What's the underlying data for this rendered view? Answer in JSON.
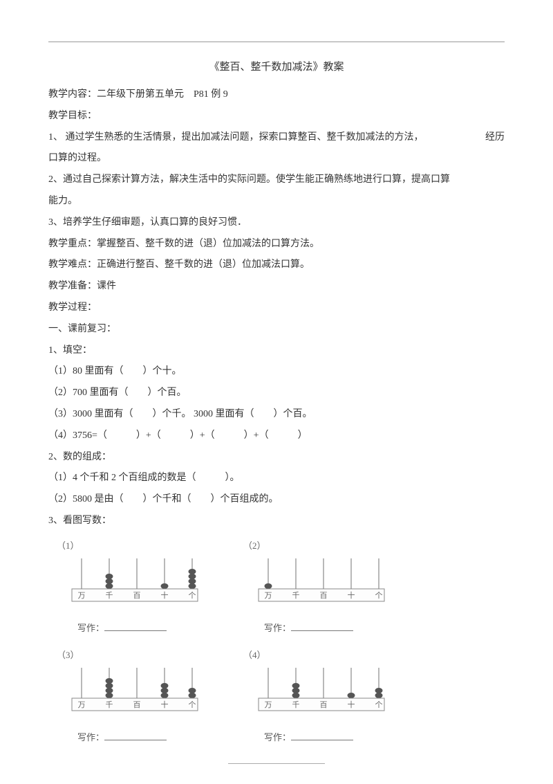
{
  "title": "《整百、整千数加减法》教案",
  "lines": {
    "l1": "教学内容：二年级下册第五单元　P81 例 9",
    "l2": "教学目标：",
    "l3a": "1、 通过学生熟悉的生活情景，提出加减法问题，探索口算整百、整千数加减法的方法，",
    "l3b": "经历",
    "l4": "口算的过程。",
    "l5": "2、通过自己探索计算方法，解决生活中的实际问题。使学生能正确熟练地进行口算，提高口算",
    "l6": "能力。",
    "l7": "3、培养学生仔细审题，认真口算的良好习惯．",
    "l8": "教学重点：掌握整百、整千数的进（退）位加减法的口算方法。",
    "l9": "教学难点：正确进行整百、整千数的进（退）位加减法口算。",
    "l10": "教学准备：课件",
    "l11": "教学过程：",
    "l12": "一、课前复习：",
    "l13": "1、填空：",
    "l14": "（1）80 里面有（　　）个十。",
    "l15": "（2）700 里面有（　　）个百。",
    "l16": "（3）3000 里面有（　　）个千。 3000 里面有（　　）个百。",
    "l17": "（4）3756=（　　　）+（　　　）+（　　　）+（　　　）",
    "l18": "2、数的组成：",
    "l19": "（1）4 个千和 2 个百组成的数是（　　　）。",
    "l20": "（2）5800 是由（　　）个千和（　　）个百组成的。",
    "l21": "3、看图写数：",
    "write": "写作："
  },
  "abacus": {
    "labels": [
      "万",
      "千",
      "百",
      "十",
      "个"
    ],
    "bead_color": "#555555",
    "rod_color": "#888888",
    "frame_color": "#888888",
    "font_color": "#666666",
    "items": [
      {
        "num": "（1）",
        "beads": [
          0,
          3,
          0,
          1,
          4
        ]
      },
      {
        "num": "（2）",
        "beads": [
          1,
          0,
          0,
          0,
          0
        ]
      },
      {
        "num": "（3）",
        "beads": [
          0,
          4,
          0,
          3,
          2
        ]
      },
      {
        "num": "（4）",
        "beads": [
          0,
          3,
          0,
          1,
          2
        ]
      }
    ]
  }
}
